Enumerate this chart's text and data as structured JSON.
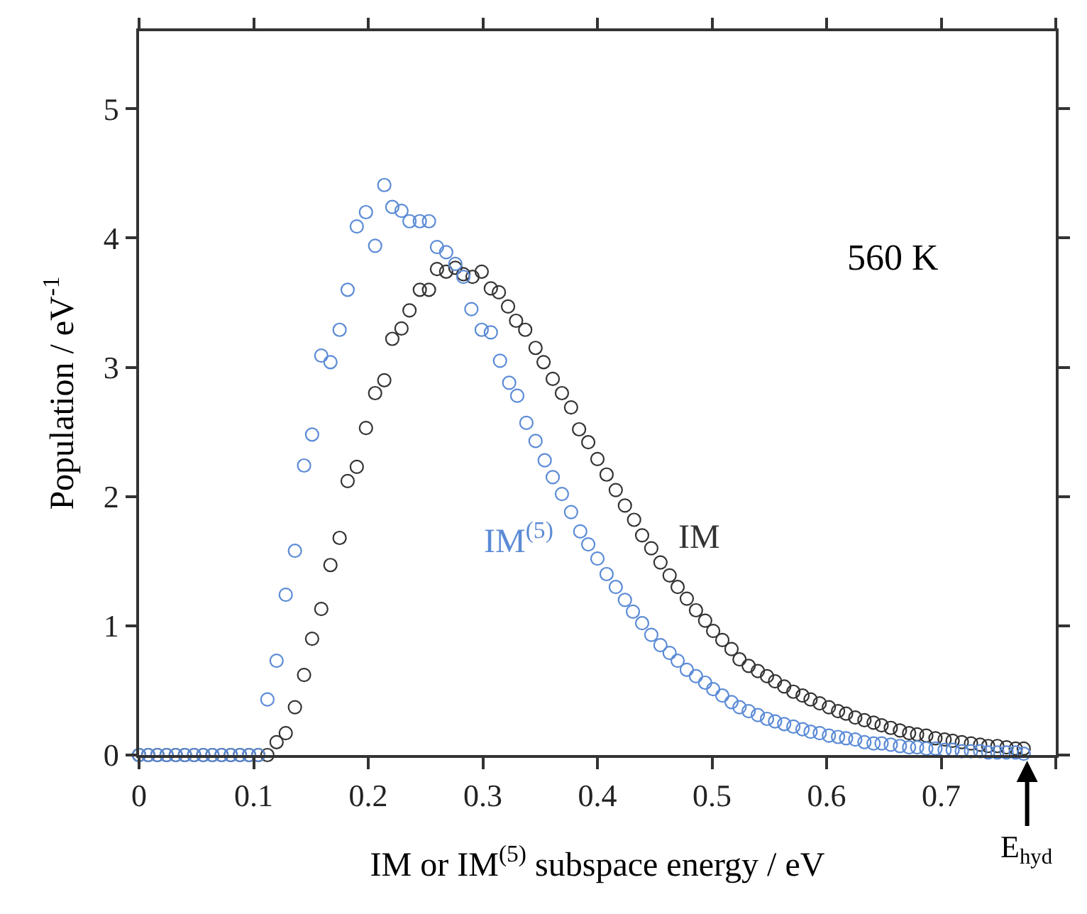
{
  "chart_data": {
    "type": "scatter",
    "xlabel": "IM or IM$^{(5)}$ subspace energy / eV",
    "ylabel": "Population / eV$^{-1}$",
    "xlim": [
      0,
      0.8
    ],
    "ylim": [
      0,
      5.6
    ],
    "xticks": [
      0,
      0.1,
      0.2,
      0.3,
      0.4,
      0.5,
      0.6,
      0.7,
      {
        "value": 0.8,
        "label": null
      }
    ],
    "yticks": [
      0,
      1,
      2,
      3,
      4,
      5
    ],
    "legend": false,
    "marker": "circle",
    "annotations": [
      "560 K",
      {
        "text": "E$_{hyd}$",
        "x": 0.775,
        "y": 0
      }
    ],
    "series": [
      {
        "name": "IM",
        "color": "#333333",
        "x": [
          0,
          0.008,
          0.016,
          0.024,
          0.032,
          0.04,
          0.048,
          0.056,
          0.064,
          0.072,
          0.08,
          0.088,
          0.096,
          0.104,
          0.112,
          0.12,
          0.128,
          0.136,
          0.144,
          0.151,
          0.159,
          0.167,
          0.175,
          0.182,
          0.19,
          0.198,
          0.206,
          0.214,
          0.221,
          0.229,
          0.236,
          0.245,
          0.253,
          0.26,
          0.268,
          0.276,
          0.283,
          0.291,
          0.299,
          0.307,
          0.314,
          0.322,
          0.329,
          0.337,
          0.346,
          0.353,
          0.361,
          0.369,
          0.377,
          0.384,
          0.392,
          0.4,
          0.408,
          0.416,
          0.424,
          0.432,
          0.439,
          0.447,
          0.455,
          0.463,
          0.47,
          0.478,
          0.486,
          0.494,
          0.501,
          0.509,
          0.517,
          0.524,
          0.532,
          0.54,
          0.548,
          0.555,
          0.563,
          0.571,
          0.579,
          0.586,
          0.594,
          0.602,
          0.61,
          0.617,
          0.625,
          0.633,
          0.641,
          0.648,
          0.656,
          0.664,
          0.672,
          0.679,
          0.687,
          0.695,
          0.703,
          0.71,
          0.718,
          0.726,
          0.734,
          0.741,
          0.749,
          0.757,
          0.765,
          0.772
        ],
        "values": [
          0,
          0,
          0,
          0,
          0,
          0,
          0,
          0,
          0,
          0,
          0,
          0,
          0,
          0,
          0,
          0.1,
          0.17,
          0.37,
          0.62,
          0.9,
          1.13,
          1.47,
          1.68,
          2.12,
          2.23,
          2.53,
          2.8,
          2.9,
          3.22,
          3.3,
          3.44,
          3.6,
          3.6,
          3.76,
          3.74,
          3.77,
          3.72,
          3.7,
          3.74,
          3.61,
          3.58,
          3.47,
          3.36,
          3.29,
          3.15,
          3.04,
          2.91,
          2.8,
          2.69,
          2.52,
          2.42,
          2.29,
          2.17,
          2.05,
          1.93,
          1.82,
          1.7,
          1.6,
          1.49,
          1.39,
          1.3,
          1.21,
          1.12,
          1.04,
          0.96,
          0.89,
          0.82,
          0.74,
          0.69,
          0.65,
          0.61,
          0.57,
          0.53,
          0.49,
          0.46,
          0.43,
          0.4,
          0.37,
          0.34,
          0.32,
          0.29,
          0.27,
          0.25,
          0.23,
          0.21,
          0.19,
          0.17,
          0.16,
          0.15,
          0.13,
          0.12,
          0.11,
          0.1,
          0.09,
          0.08,
          0.07,
          0.07,
          0.06,
          0.05,
          0.05
        ]
      },
      {
        "name": "IM$^{(5)}$",
        "color": "#5b8bd6",
        "x": [
          0,
          0.008,
          0.016,
          0.024,
          0.032,
          0.04,
          0.048,
          0.056,
          0.064,
          0.072,
          0.08,
          0.088,
          0.096,
          0.104,
          0.112,
          0.12,
          0.128,
          0.136,
          0.144,
          0.151,
          0.159,
          0.167,
          0.175,
          0.182,
          0.19,
          0.198,
          0.206,
          0.214,
          0.221,
          0.229,
          0.236,
          0.245,
          0.253,
          0.26,
          0.268,
          0.276,
          0.283,
          0.29,
          0.299,
          0.307,
          0.315,
          0.323,
          0.33,
          0.338,
          0.346,
          0.354,
          0.361,
          0.369,
          0.377,
          0.385,
          0.392,
          0.4,
          0.408,
          0.416,
          0.424,
          0.431,
          0.439,
          0.447,
          0.455,
          0.463,
          0.47,
          0.478,
          0.486,
          0.494,
          0.501,
          0.509,
          0.517,
          0.524,
          0.532,
          0.54,
          0.548,
          0.555,
          0.563,
          0.571,
          0.579,
          0.586,
          0.594,
          0.602,
          0.61,
          0.617,
          0.625,
          0.633,
          0.641,
          0.648,
          0.656,
          0.664,
          0.672,
          0.679,
          0.687,
          0.695,
          0.703,
          0.71,
          0.718,
          0.726,
          0.734,
          0.741,
          0.749,
          0.757,
          0.765,
          0.772
        ],
        "values": [
          0,
          0,
          0,
          0,
          0,
          0,
          0,
          0,
          0,
          0,
          0,
          0,
          0,
          0,
          0.43,
          0.73,
          1.24,
          1.58,
          2.24,
          2.48,
          3.09,
          3.04,
          3.29,
          3.6,
          4.09,
          4.2,
          3.94,
          4.41,
          4.24,
          4.21,
          4.13,
          4.13,
          4.13,
          3.93,
          3.89,
          3.8,
          3.7,
          3.45,
          3.29,
          3.27,
          3.05,
          2.88,
          2.78,
          2.57,
          2.43,
          2.28,
          2.15,
          2.02,
          1.88,
          1.73,
          1.63,
          1.52,
          1.4,
          1.3,
          1.2,
          1.11,
          1.02,
          0.93,
          0.85,
          0.79,
          0.73,
          0.66,
          0.61,
          0.56,
          0.51,
          0.46,
          0.41,
          0.37,
          0.34,
          0.31,
          0.28,
          0.26,
          0.24,
          0.22,
          0.2,
          0.18,
          0.17,
          0.15,
          0.14,
          0.13,
          0.12,
          0.1,
          0.09,
          0.09,
          0.08,
          0.07,
          0.06,
          0.06,
          0.05,
          0.05,
          0.04,
          0.04,
          0.03,
          0.03,
          0.03,
          0.02,
          0.02,
          0.02,
          0.02,
          0.01
        ]
      }
    ]
  }
}
